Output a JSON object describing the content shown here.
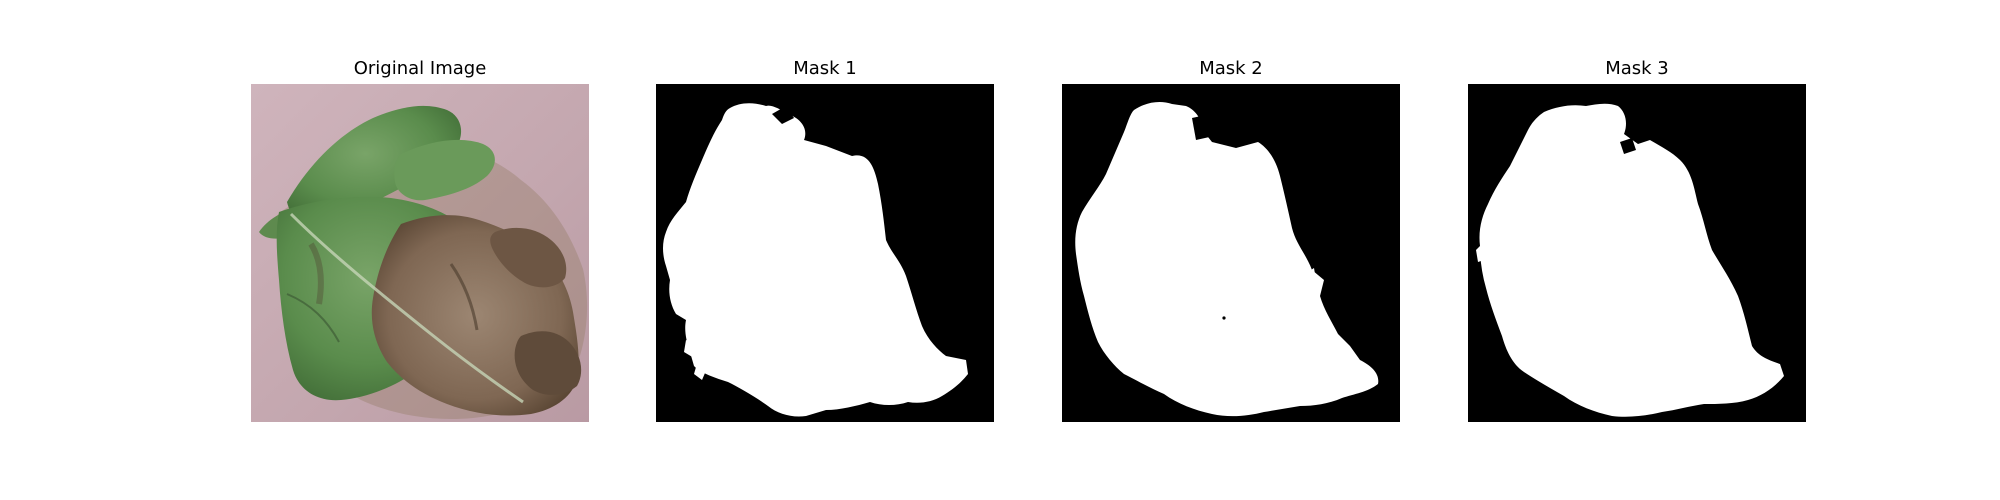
{
  "panels": [
    {
      "title": "Original Image",
      "kind": "photo"
    },
    {
      "title": "Mask 1",
      "kind": "mask"
    },
    {
      "title": "Mask 2",
      "kind": "mask"
    },
    {
      "title": "Mask 3",
      "kind": "mask"
    }
  ],
  "colors": {
    "mask_background": "#000000",
    "mask_foreground": "#ffffff",
    "photo_background": "#c7a9b1",
    "leaf_green": "#5d8e4f",
    "leaf_brown": "#86705d"
  }
}
